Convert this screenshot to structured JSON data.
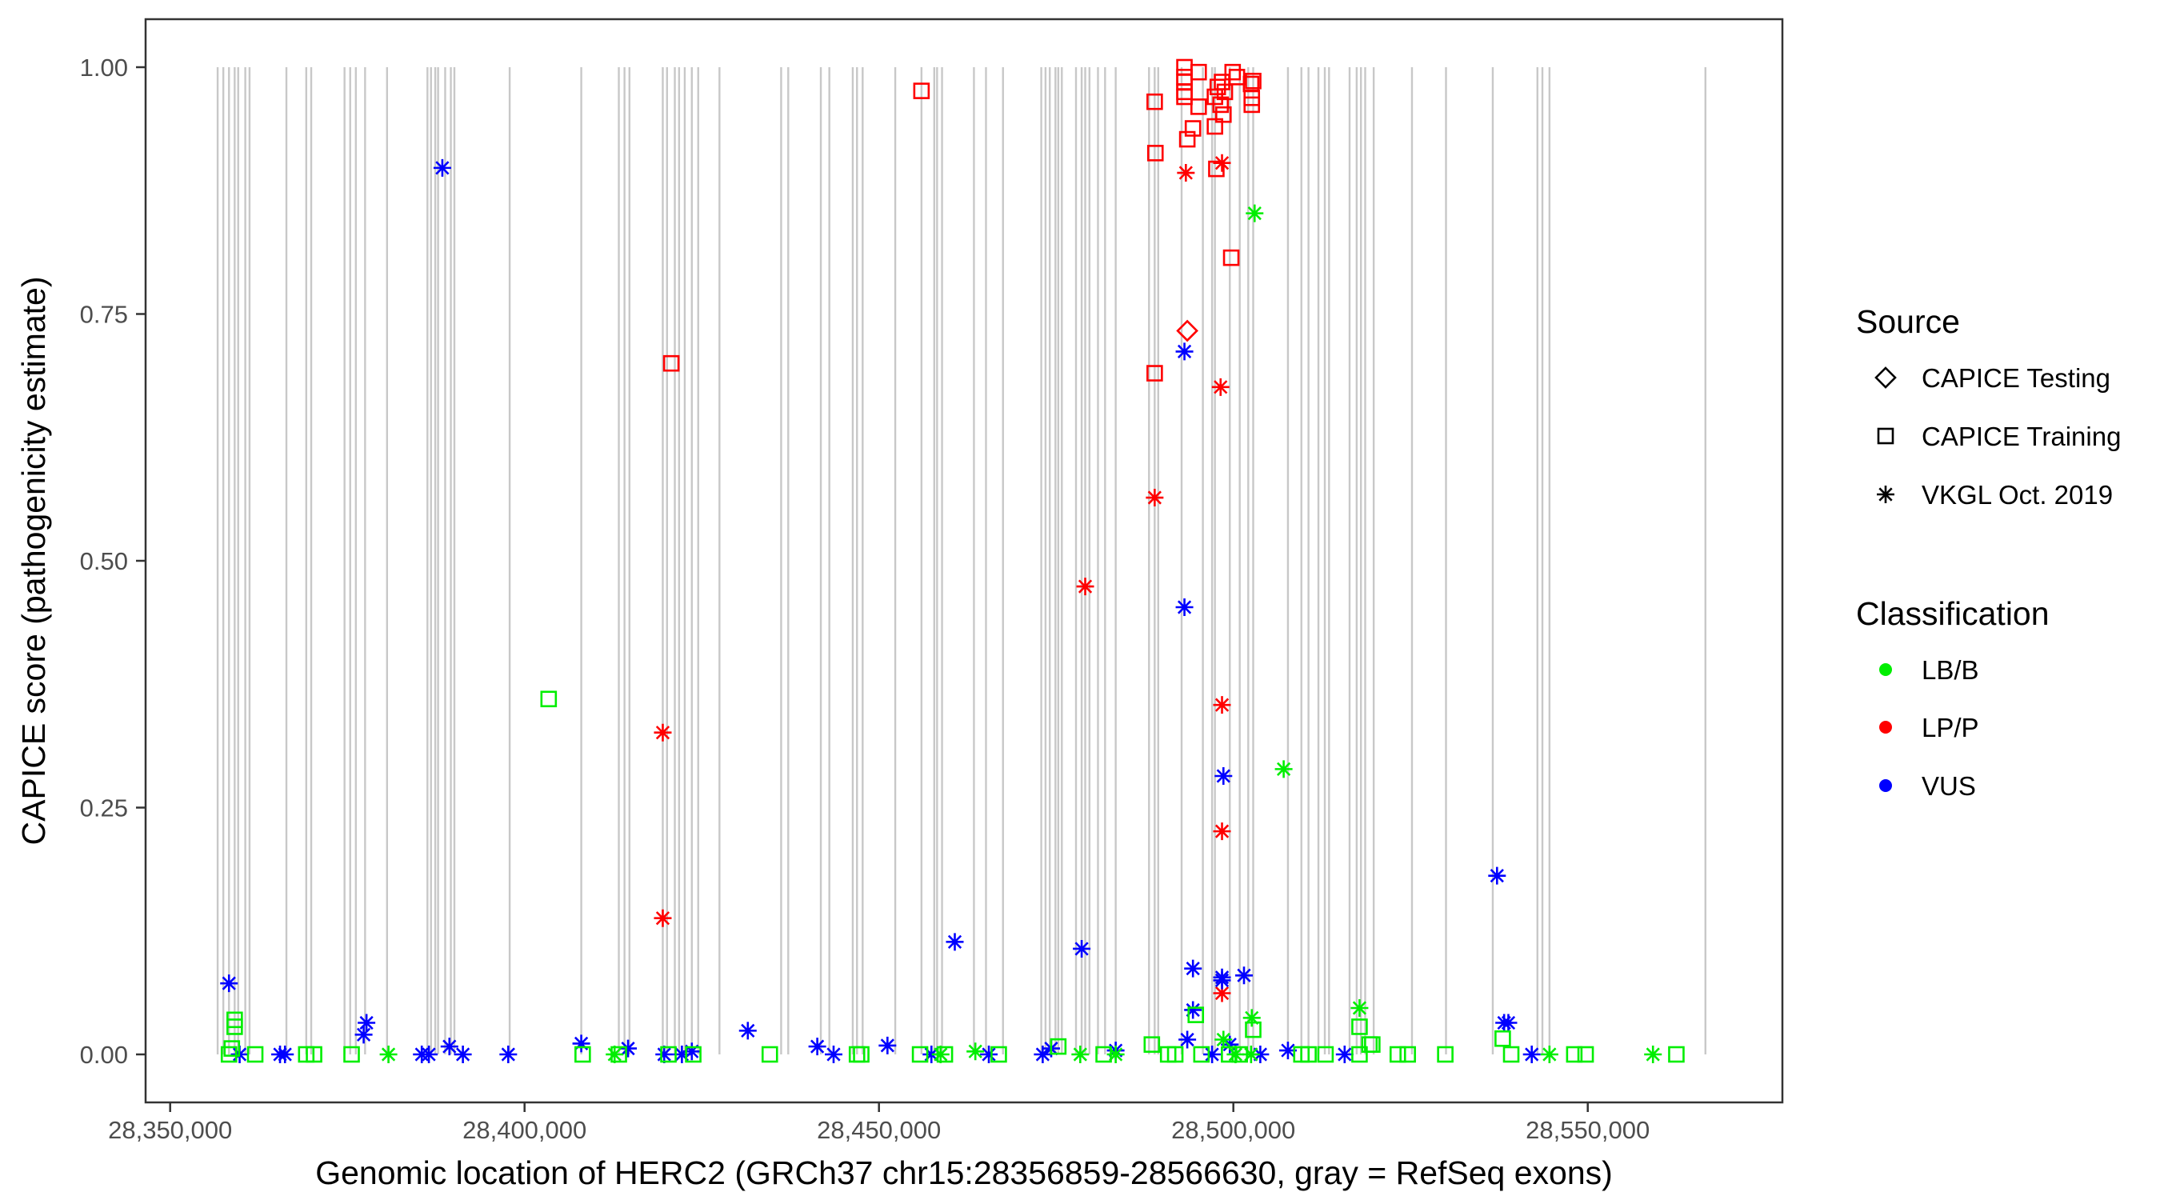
{
  "chart_data": {
    "type": "scatter",
    "xlabel": "Genomic location of HERC2 (GRCh37 chr15:28356859-28566630, gray = RefSeq exons)",
    "ylabel": "CAPICE score (pathogenicity estimate)",
    "xlim": [
      28343000,
      28573000
    ],
    "ylim": [
      -0.05,
      1.05
    ],
    "x_ticks": [
      28350000,
      28400000,
      28450000,
      28500000,
      28550000
    ],
    "x_tick_labels": [
      "28,350,000",
      "28,400,000",
      "28,450,000",
      "28,500,000",
      "28,550,000"
    ],
    "y_ticks": [
      0,
      0.25,
      0.5,
      0.75,
      1.0
    ],
    "y_tick_labels": [
      "0.00",
      "0.25",
      "0.50",
      "0.75",
      "1.00"
    ],
    "grid": false,
    "legend_placement": "right",
    "legend": {
      "source_title": "Source",
      "sources": [
        {
          "label": "CAPICE Testing",
          "shape": "diamond"
        },
        {
          "label": "CAPICE Training",
          "shape": "square"
        },
        {
          "label": "VKGL Oct. 2019",
          "shape": "asterisk"
        }
      ],
      "class_title": "Classification",
      "classes": [
        {
          "label": "LB/B",
          "color": "#00ee00"
        },
        {
          "label": "LP/P",
          "color": "#ff0000"
        },
        {
          "label": "VUS",
          "color": "#0000ff"
        }
      ]
    },
    "exon_color": "#c8c8c8",
    "exon_positions": [
      28356700,
      28357500,
      28358300,
      28359100,
      28359600,
      28360600,
      28361200,
      28366400,
      28369200,
      28369900,
      28374600,
      28375400,
      28376200,
      28377500,
      28380600,
      28386300,
      28386800,
      28387400,
      28387800,
      28388800,
      28389600,
      28390100,
      28397900,
      28408000,
      28413300,
      28414100,
      28414800,
      28419500,
      28420100,
      28421200,
      28421800,
      28422600,
      28423600,
      28424500,
      28427500,
      28436200,
      28437200,
      28441800,
      28443000,
      28446300,
      28446900,
      28447700,
      28452300,
      28456000,
      28457800,
      28458200,
      28458900,
      28463400,
      28465100,
      28467500,
      28472900,
      28473500,
      28474100,
      28474900,
      28475300,
      28475800,
      28477800,
      28478600,
      28479100,
      28479700,
      28480900,
      28481900,
      28483400,
      28488100,
      28488900,
      28489400,
      28492700,
      28495700,
      28497000,
      28497400,
      28499500,
      28500900,
      28502100,
      28502800,
      28507700,
      28509600,
      28510600,
      28512000,
      28512900,
      28513500,
      28516400,
      28517400,
      28518000,
      28518600,
      28519800,
      28525200,
      28530000,
      28536600,
      28542900,
      28543600,
      28544600,
      28566600
    ],
    "points_columns": [
      "position",
      "score",
      "source_index",
      "class_index"
    ],
    "points": [
      [
        28456000,
        0.976,
        1,
        1
      ],
      [
        28420700,
        0.7,
        1,
        1
      ],
      [
        28488900,
        0.965,
        1,
        1
      ],
      [
        28489000,
        0.913,
        1,
        1
      ],
      [
        28488900,
        0.69,
        1,
        1
      ],
      [
        28493100,
        1.0,
        1,
        1
      ],
      [
        28493100,
        0.99,
        1,
        1
      ],
      [
        28493100,
        0.985,
        1,
        1
      ],
      [
        28493100,
        0.975,
        1,
        1
      ],
      [
        28493100,
        0.97,
        1,
        1
      ],
      [
        28493500,
        0.927,
        1,
        1
      ],
      [
        28494300,
        0.938,
        1,
        1
      ],
      [
        28495100,
        0.995,
        1,
        1
      ],
      [
        28495100,
        0.96,
        1,
        1
      ],
      [
        28497400,
        0.97,
        1,
        1
      ],
      [
        28497400,
        0.94,
        1,
        1
      ],
      [
        28497600,
        0.897,
        1,
        1
      ],
      [
        28497800,
        0.98,
        1,
        1
      ],
      [
        28498200,
        0.962,
        1,
        1
      ],
      [
        28498400,
        0.985,
        1,
        1
      ],
      [
        28498600,
        0.952,
        1,
        1
      ],
      [
        28498800,
        0.975,
        1,
        1
      ],
      [
        28499700,
        0.807,
        1,
        1
      ],
      [
        28499900,
        0.995,
        1,
        1
      ],
      [
        28500500,
        0.99,
        1,
        1
      ],
      [
        28502500,
        0.983,
        1,
        1
      ],
      [
        28502600,
        0.969,
        1,
        1
      ],
      [
        28502600,
        0.962,
        1,
        1
      ],
      [
        28502800,
        0.986,
        1,
        1
      ],
      [
        28493500,
        0.733,
        0,
        1
      ],
      [
        28419500,
        0.326,
        2,
        1
      ],
      [
        28419500,
        0.138,
        2,
        1
      ],
      [
        28479100,
        0.474,
        2,
        1
      ],
      [
        28488900,
        0.564,
        2,
        1
      ],
      [
        28493300,
        0.893,
        2,
        1
      ],
      [
        28498200,
        0.676,
        2,
        1
      ],
      [
        28498400,
        0.903,
        2,
        1
      ],
      [
        28498400,
        0.354,
        2,
        1
      ],
      [
        28498400,
        0.226,
        2,
        1
      ],
      [
        28498400,
        0.062,
        2,
        1
      ],
      [
        28358300,
        0.072,
        2,
        2
      ],
      [
        28388400,
        0.898,
        2,
        2
      ],
      [
        28493100,
        0.712,
        2,
        2
      ],
      [
        28493100,
        0.453,
        2,
        2
      ],
      [
        28498600,
        0.282,
        2,
        2
      ],
      [
        28460700,
        0.114,
        2,
        2
      ],
      [
        28478600,
        0.107,
        2,
        2
      ],
      [
        28494300,
        0.087,
        2,
        2
      ],
      [
        28494300,
        0.045,
        2,
        2
      ],
      [
        28498400,
        0.075,
        2,
        2
      ],
      [
        28498400,
        0.078,
        2,
        2
      ],
      [
        28501500,
        0.08,
        2,
        2
      ],
      [
        28537200,
        0.181,
        2,
        2
      ],
      [
        28538200,
        0.032,
        2,
        2
      ],
      [
        28538800,
        0.032,
        2,
        2
      ],
      [
        28377300,
        0.02,
        2,
        2
      ],
      [
        28377700,
        0.032,
        2,
        2
      ],
      [
        28431500,
        0.024,
        2,
        2
      ],
      [
        28408000,
        0.011,
        2,
        2
      ],
      [
        28414600,
        0.006,
        2,
        2
      ],
      [
        28441300,
        0.008,
        2,
        2
      ],
      [
        28451200,
        0.009,
        2,
        2
      ],
      [
        28359800,
        0,
        2,
        2
      ],
      [
        28365500,
        0,
        2,
        2
      ],
      [
        28366200,
        0,
        2,
        2
      ],
      [
        28385500,
        0,
        2,
        2
      ],
      [
        28386500,
        0,
        2,
        2
      ],
      [
        28389400,
        0.008,
        2,
        2
      ],
      [
        28391300,
        0,
        2,
        2
      ],
      [
        28397700,
        0,
        2,
        2
      ],
      [
        28419700,
        0,
        2,
        2
      ],
      [
        28422200,
        0,
        2,
        2
      ],
      [
        28423600,
        0.003,
        2,
        2
      ],
      [
        28443600,
        0,
        2,
        2
      ],
      [
        28457400,
        0,
        2,
        2
      ],
      [
        28465500,
        0,
        2,
        2
      ],
      [
        28473100,
        0,
        2,
        2
      ],
      [
        28474300,
        0.006,
        2,
        2
      ],
      [
        28483400,
        0.004,
        2,
        2
      ],
      [
        28493500,
        0.015,
        2,
        2
      ],
      [
        28497000,
        0,
        2,
        2
      ],
      [
        28499500,
        0.01,
        2,
        2
      ],
      [
        28503800,
        0,
        2,
        2
      ],
      [
        28507700,
        0.004,
        2,
        2
      ],
      [
        28515700,
        0,
        2,
        2
      ],
      [
        28542100,
        0,
        2,
        2
      ],
      [
        28503000,
        0.852,
        2,
        0
      ],
      [
        28507100,
        0.289,
        2,
        0
      ],
      [
        28517800,
        0.047,
        2,
        0
      ],
      [
        28502600,
        0.037,
        2,
        0
      ],
      [
        28380800,
        0,
        2,
        0
      ],
      [
        28412700,
        0,
        2,
        0
      ],
      [
        28458700,
        0,
        2,
        0
      ],
      [
        28463600,
        0.003,
        2,
        0
      ],
      [
        28478400,
        0,
        2,
        0
      ],
      [
        28483400,
        0,
        2,
        0
      ],
      [
        28498600,
        0.015,
        2,
        0
      ],
      [
        28500300,
        0,
        2,
        0
      ],
      [
        28502500,
        0,
        2,
        0
      ],
      [
        28544600,
        0,
        2,
        0
      ],
      [
        28559200,
        0,
        2,
        0
      ],
      [
        28403400,
        0.36,
        1,
        0
      ],
      [
        28359100,
        0.035,
        1,
        0
      ],
      [
        28359100,
        0.028,
        1,
        0
      ],
      [
        28358700,
        0.006,
        1,
        0
      ],
      [
        28517800,
        0.028,
        1,
        0
      ],
      [
        28538000,
        0.016,
        1,
        0
      ],
      [
        28519200,
        0.01,
        1,
        0
      ],
      [
        28358300,
        0,
        1,
        0
      ],
      [
        28362000,
        0,
        1,
        0
      ],
      [
        28369200,
        0,
        1,
        0
      ],
      [
        28370300,
        0,
        1,
        0
      ],
      [
        28375600,
        0,
        1,
        0
      ],
      [
        28408200,
        0,
        1,
        0
      ],
      [
        28413300,
        0,
        1,
        0
      ],
      [
        28420300,
        0,
        1,
        0
      ],
      [
        28423800,
        0,
        1,
        0
      ],
      [
        28434600,
        0,
        1,
        0
      ],
      [
        28446900,
        0,
        1,
        0
      ],
      [
        28447500,
        0,
        1,
        0
      ],
      [
        28455800,
        0,
        1,
        0
      ],
      [
        28459300,
        0,
        1,
        0
      ],
      [
        28466900,
        0,
        1,
        0
      ],
      [
        28475300,
        0.008,
        1,
        0
      ],
      [
        28481700,
        0,
        1,
        0
      ],
      [
        28488500,
        0.01,
        1,
        0
      ],
      [
        28490800,
        0,
        1,
        0
      ],
      [
        28491800,
        0,
        1,
        0
      ],
      [
        28494700,
        0.04,
        1,
        0
      ],
      [
        28495500,
        0,
        1,
        0
      ],
      [
        28499400,
        0,
        1,
        0
      ],
      [
        28500900,
        0,
        1,
        0
      ],
      [
        28502800,
        0.025,
        1,
        0
      ],
      [
        28509600,
        0,
        1,
        0
      ],
      [
        28510600,
        0,
        1,
        0
      ],
      [
        28513000,
        0,
        1,
        0
      ],
      [
        28517800,
        0,
        1,
        0
      ],
      [
        28519600,
        0.01,
        1,
        0
      ],
      [
        28523200,
        0,
        1,
        0
      ],
      [
        28524600,
        0,
        1,
        0
      ],
      [
        28529900,
        0,
        1,
        0
      ],
      [
        28539200,
        0,
        1,
        0
      ],
      [
        28548100,
        0,
        1,
        0
      ],
      [
        28549700,
        0,
        1,
        0
      ],
      [
        28562500,
        0,
        1,
        0
      ]
    ]
  }
}
